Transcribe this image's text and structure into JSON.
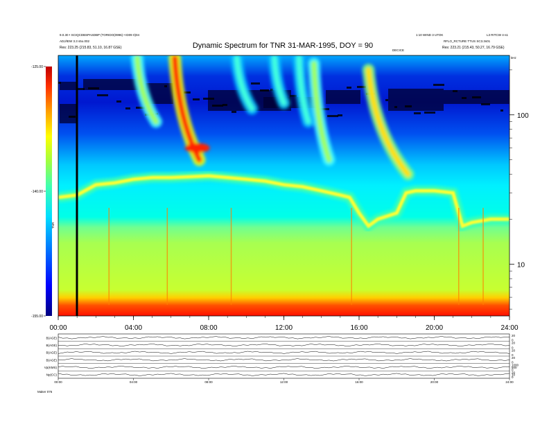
{
  "chart_data": {
    "type": "heatmap",
    "title": "Dynamic Spectrum for TNR 31-MAR-1995, DOY = 90",
    "header": {
      "top_left_line1": "9.0.30 • SCIQCDBSPASDBP (TORIDO(0996) • ID09 0)04",
      "top_left_line2": "ADJ/IEW 3.3 s5o.002",
      "top_right_line1": "1:10 WIND 3 UTOK",
      "top_right_line2": "L3 RITCW 4-s1",
      "top_right_line3": "RFLO_RCTURE TTUS SC3.3s01",
      "res_left": "Res:   223.25 (215.83, 51.10, 16.87 GSE)",
      "res_right": "Res:   223.21 (215.43, 50.27, 16.79 GSE)",
      "center_small": "DECICE",
      "khz": "kHz",
      "colorbar_unit": "TNR",
      "bottom_left": "Maker  076"
    },
    "x_axis": {
      "label": "",
      "range": [
        0,
        24
      ],
      "ticks": [
        0,
        4,
        8,
        12,
        16,
        20,
        24
      ],
      "tick_labels": [
        "00:00",
        "04:00",
        "08:00",
        "12:00",
        "16:00",
        "20:00",
        "24:00"
      ]
    },
    "y_axis": {
      "label": "",
      "scale": "log",
      "range": [
        4.5,
        250
      ],
      "ticks": [
        10,
        100
      ],
      "tick_labels": [
        "10",
        "100"
      ]
    },
    "colorbar": {
      "range": [
        -155,
        -125
      ],
      "ticks": [
        -125,
        -140,
        -155
      ],
      "tick_labels": [
        "-125.00",
        "-140.00",
        "-155.00"
      ],
      "colors": [
        "#00007f",
        "#0000ff",
        "#0060ff",
        "#00d0ff",
        "#40ffb0",
        "#a0ff40",
        "#ffff00",
        "#ffb000",
        "#ff4000",
        "#d00000"
      ]
    },
    "cutoff_line": {
      "description_values_time_hours": [
        0,
        1,
        2,
        3,
        4,
        5,
        6,
        7,
        8,
        9,
        10,
        11,
        12,
        13,
        14,
        15,
        15.5,
        16,
        16.5,
        17,
        18,
        18.5,
        19,
        20,
        21,
        21.5,
        22,
        23,
        24
      ],
      "freq_khz": [
        28,
        29,
        34,
        35,
        37,
        38,
        38,
        38.5,
        39,
        38,
        37,
        36,
        34,
        33,
        31,
        29,
        28,
        22,
        18,
        20,
        22,
        30,
        31,
        31,
        30,
        18,
        19,
        20,
        20
      ]
    },
    "bursts": [
      {
        "start_hour": 6.2,
        "start_freq_khz": 240,
        "end_hour": 7.5,
        "end_freq_khz": 50,
        "intensity": -126
      },
      {
        "start_hour": 4.2,
        "start_freq_khz": 240,
        "end_hour": 5.2,
        "end_freq_khz": 90,
        "intensity": -133
      },
      {
        "start_hour": 13.6,
        "start_freq_khz": 220,
        "end_hour": 14.4,
        "end_freq_khz": 50,
        "intensity": -133
      },
      {
        "start_hour": 16.5,
        "start_freq_khz": 200,
        "end_hour": 18.6,
        "end_freq_khz": 40,
        "intensity": -130
      },
      {
        "start_hour": 12.8,
        "start_freq_khz": 240,
        "end_hour": 13.3,
        "end_freq_khz": 90,
        "intensity": -135
      },
      {
        "start_hour": 9.5,
        "start_freq_khz": 240,
        "end_hour": 10.3,
        "end_freq_khz": 110,
        "intensity": -135
      },
      {
        "start_hour": 11.5,
        "start_freq_khz": 240,
        "end_hour": 12.0,
        "end_freq_khz": 120,
        "intensity": -136
      }
    ],
    "bottom_panel": {
      "rows": [
        {
          "label": "B(AGE)",
          "right_ticks": [
            "20",
            "0"
          ]
        },
        {
          "label": "B(AGE)",
          "right_ticks": [
            "20",
            "0"
          ]
        },
        {
          "label": "B(AGE)",
          "right_ticks": [
            "20",
            "0"
          ]
        },
        {
          "label": "B(AGE)",
          "right_ticks": [
            "20",
            "0"
          ]
        },
        {
          "label": "Vp(KMS)",
          "right_ticks": [
            "1000",
            "500",
            "0"
          ]
        },
        {
          "label": "Np(CC)",
          "right_ticks": [
            "20",
            "10",
            "0"
          ]
        }
      ],
      "tick_labels": [
        "00:00",
        "04:00",
        "08:00",
        "12:00",
        "16:00",
        "20:00",
        "24:00"
      ]
    }
  }
}
